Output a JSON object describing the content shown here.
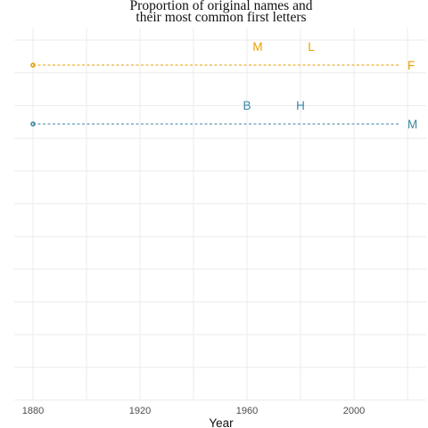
{
  "chart_data": {
    "type": "line",
    "title_lines": [
      "Proportion of original names and",
      "their most common first letters"
    ],
    "xlabel": "Year",
    "ylabel": "",
    "xlim": [
      1873,
      2027
    ],
    "x_ticks": [
      1880,
      1920,
      1960,
      2000
    ],
    "y_gridlines": 12,
    "grid": true,
    "legend": "none",
    "series": [
      {
        "color": "#E69F00",
        "x": [
          1880,
          2017
        ],
        "end_label": "F",
        "top_letters": [
          {
            "letter": "M",
            "x": 1964
          },
          {
            "letter": "L",
            "x": 1984
          }
        ]
      },
      {
        "color": "#3A86A3",
        "x": [
          1880,
          2017
        ],
        "end_label": "M",
        "top_letters": [
          {
            "letter": "B",
            "x": 1960
          },
          {
            "letter": "H",
            "x": 1980
          }
        ]
      }
    ]
  }
}
